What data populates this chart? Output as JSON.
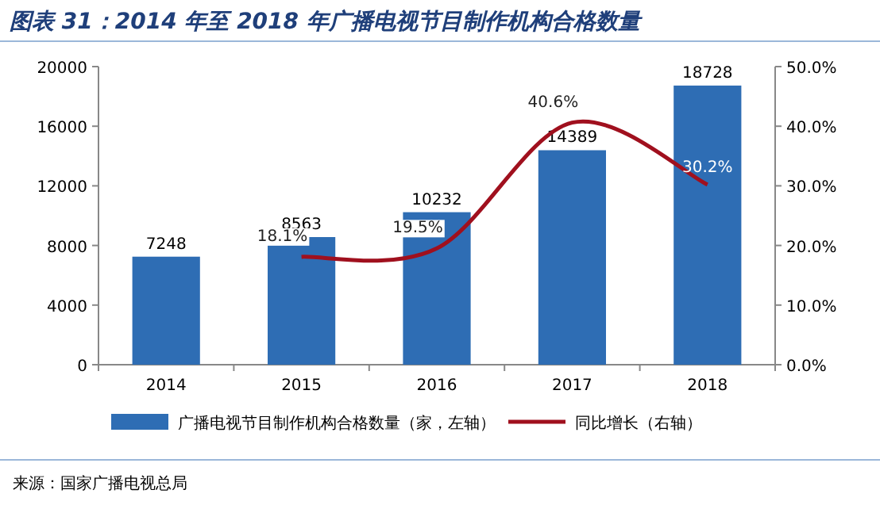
{
  "chart_data": {
    "type": "bar",
    "title": "图表 31：2014 年至 2018 年广播电视节目制作机构合格数量",
    "categories": [
      "2014",
      "2015",
      "2016",
      "2017",
      "2018"
    ],
    "series": [
      {
        "name": "广播电视节目制作机构合格数量（家，左轴）",
        "color": "#2e6db4",
        "values": [
          7248,
          8563,
          10232,
          14389,
          18728
        ],
        "value_labels": [
          "7248",
          "8563",
          "10232",
          "14389",
          "18728"
        ]
      },
      {
        "name": "同比增长（右轴）",
        "type": "line",
        "axis": "y2",
        "color": "#a0101e",
        "values": [
          null,
          18.1,
          19.5,
          40.6,
          30.2
        ],
        "value_labels": [
          null,
          "18.1%",
          "19.5%",
          "40.6%",
          "30.2%"
        ]
      }
    ],
    "ylim": [
      0,
      20000
    ],
    "yticks": [
      0,
      4000,
      8000,
      12000,
      16000,
      20000
    ],
    "y2lim": [
      0,
      50
    ],
    "y2ticks": [
      {
        "value": 0,
        "label": "0.0%"
      },
      {
        "value": 10,
        "label": "10.0%"
      },
      {
        "value": 20,
        "label": "20.0%"
      },
      {
        "value": 30,
        "label": "30.0%"
      },
      {
        "value": 40,
        "label": "40.0%"
      },
      {
        "value": 50,
        "label": "50.0%"
      }
    ],
    "legend": "bottom",
    "grid": false,
    "annotations": [
      "来源：国家广播电视总局"
    ]
  }
}
